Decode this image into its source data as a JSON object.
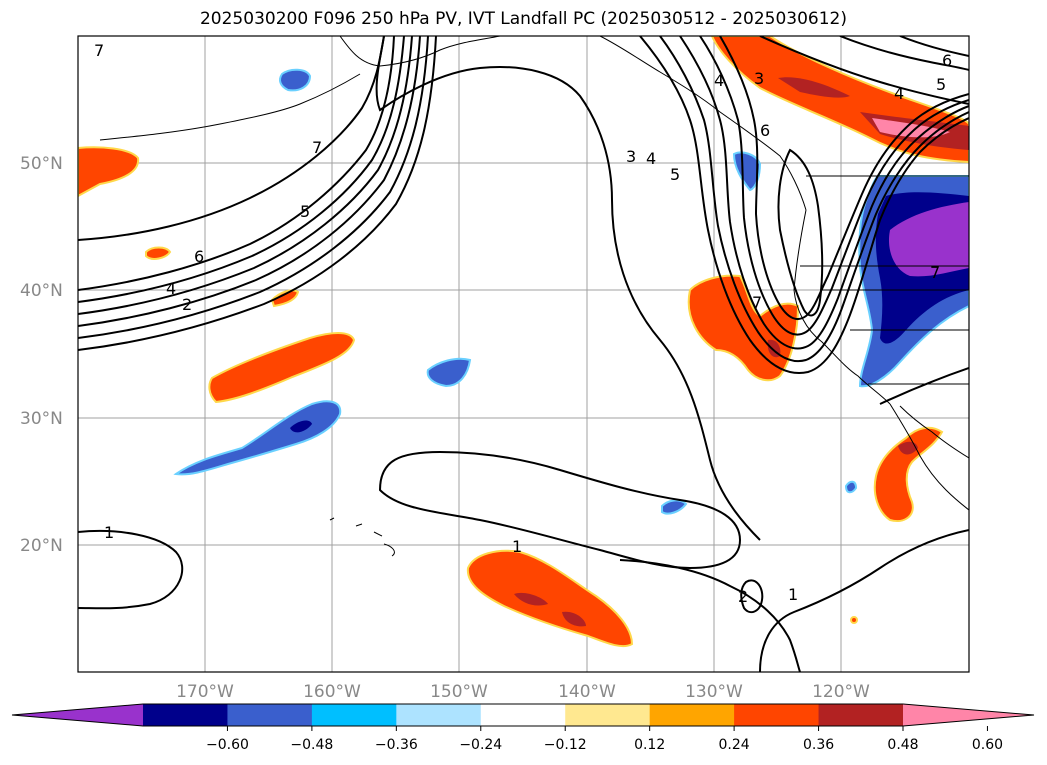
{
  "title": "2025030200 F096 250 hPa PV, IVT Landfall PC (2025030512 - 2025030612)",
  "map": {
    "lat_labels": [
      "50°N",
      "40°N",
      "30°N",
      "20°N"
    ],
    "lon_labels": [
      "170°W",
      "160°W",
      "150°W",
      "140°W",
      "130°W",
      "120°W"
    ],
    "contour_labels": [
      "7",
      "7",
      "5",
      "6",
      "4",
      "2",
      "3",
      "4",
      "5",
      "4",
      "3",
      "6",
      "4",
      "5",
      "6",
      "7",
      "7",
      "1",
      "1",
      "2",
      "1"
    ],
    "shading": {
      "positive_colors": [
        "#ffe890",
        "#ffa500",
        "#ff4500",
        "#b22222",
        "#ff85a8"
      ],
      "negative_colors": [
        "#ade3ff",
        "#00bfff",
        "#3a5fcd",
        "#00008b",
        "#9932cc"
      ]
    }
  },
  "colorbar": {
    "colors": [
      "#9932cc",
      "#00008b",
      "#3a5fcd",
      "#00bfff",
      "#ade3ff",
      "#ffffff",
      "#ffe890",
      "#ffa500",
      "#ff4500",
      "#b22222",
      "#ff85a8"
    ],
    "ticks": [
      "−0.60",
      "−0.48",
      "−0.36",
      "−0.24",
      "−0.12",
      "0.12",
      "0.24",
      "0.36",
      "0.48",
      "0.60"
    ]
  }
}
